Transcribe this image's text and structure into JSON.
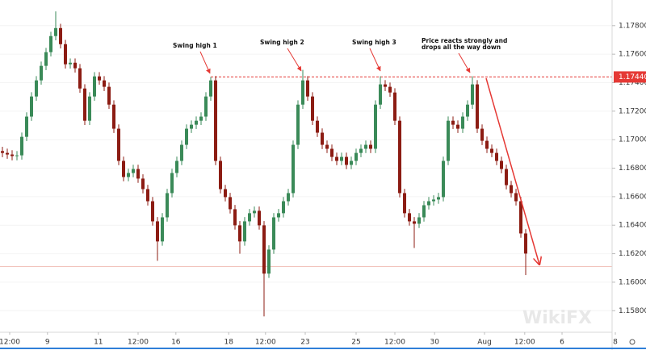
{
  "chart_data": {
    "type": "candlestick",
    "open": [
      1.1692,
      1.16907,
      1.16896,
      1.16885,
      1.1689,
      1.1702,
      1.17162,
      1.17303,
      1.17416,
      1.17518,
      1.17614,
      1.17727,
      1.17783,
      1.1767,
      1.17529,
      1.1754,
      1.17501,
      1.17359,
      1.17133,
      1.17303,
      1.17444,
      1.17416,
      1.17371,
      1.17246,
      1.17077,
      1.16851,
      1.16738,
      1.16766,
      1.16794,
      1.16727,
      1.16653,
      1.16568,
      1.16427,
      1.16286,
      1.16455,
      1.16625,
      1.16766,
      1.16851,
      1.16964,
      1.17077,
      1.17105,
      1.17133,
      1.17162,
      1.17303,
      1.17416,
      1.16851,
      1.16653,
      1.16597,
      1.16512,
      1.16399,
      1.16286,
      1.16427,
      1.16484,
      1.16501,
      1.16399,
      1.1606,
      1.16229,
      1.16455,
      1.16484,
      1.16568,
      1.16625,
      1.16964,
      1.17246,
      1.17416,
      1.17303,
      1.17133,
      1.17049,
      1.16964,
      1.16936,
      1.16879,
      1.16851,
      1.16879,
      1.16823,
      1.16851,
      1.16907,
      1.16936,
      1.16964,
      1.16936,
      1.17246,
      1.17388,
      1.17371,
      1.17331,
      1.17133,
      1.16625,
      1.16484,
      1.16427,
      1.1641,
      1.16455,
      1.1654,
      1.16568,
      1.1658,
      1.16597,
      1.16851,
      1.17133,
      1.17105,
      1.17077,
      1.17162,
      1.17246,
      1.17388,
      1.17077,
      1.16992,
      1.16936,
      1.16907,
      1.16851,
      1.16794,
      1.16681,
      1.16625,
      1.16568,
      1.16342
    ],
    "high": [
      1.1695,
      1.16937,
      1.16926,
      1.1692,
      1.1705,
      1.17192,
      1.17333,
      1.17446,
      1.17548,
      1.17644,
      1.17757,
      1.179,
      1.17813,
      1.177,
      1.1757,
      1.1757,
      1.17531,
      1.17389,
      1.17333,
      1.17474,
      1.17474,
      1.17446,
      1.17401,
      1.17276,
      1.17107,
      1.16881,
      1.16796,
      1.16824,
      1.16824,
      1.16757,
      1.16683,
      1.16598,
      1.16457,
      1.16485,
      1.16655,
      1.16796,
      1.16881,
      1.16994,
      1.17107,
      1.17135,
      1.17163,
      1.17192,
      1.17333,
      1.1744,
      1.17446,
      1.16881,
      1.16683,
      1.16627,
      1.16542,
      1.16429,
      1.16457,
      1.16514,
      1.16531,
      1.16531,
      1.16429,
      1.16259,
      1.16485,
      1.16514,
      1.16598,
      1.16655,
      1.16994,
      1.17276,
      1.1749,
      1.17446,
      1.17333,
      1.17163,
      1.17079,
      1.16994,
      1.16966,
      1.16909,
      1.16909,
      1.16909,
      1.16881,
      1.16937,
      1.16966,
      1.16994,
      1.16994,
      1.17276,
      1.17445,
      1.17418,
      1.17401,
      1.17361,
      1.17163,
      1.16655,
      1.16514,
      1.16457,
      1.16485,
      1.1657,
      1.16598,
      1.1661,
      1.16627,
      1.16881,
      1.17163,
      1.17163,
      1.17135,
      1.17192,
      1.17276,
      1.17445,
      1.17418,
      1.17107,
      1.17022,
      1.16966,
      1.16937,
      1.16881,
      1.16824,
      1.16711,
      1.16655,
      1.16598,
      1.16372
    ],
    "low": [
      1.16877,
      1.16866,
      1.16855,
      1.16855,
      1.1686,
      1.1699,
      1.17132,
      1.17273,
      1.17386,
      1.17488,
      1.17584,
      1.17697,
      1.1764,
      1.17499,
      1.17499,
      1.17471,
      1.17329,
      1.17103,
      1.17103,
      1.17273,
      1.17386,
      1.17341,
      1.17216,
      1.17047,
      1.16821,
      1.16708,
      1.16708,
      1.16736,
      1.16697,
      1.16623,
      1.16538,
      1.16397,
      1.1615,
      1.16256,
      1.16425,
      1.16595,
      1.16736,
      1.16821,
      1.16934,
      1.17047,
      1.17075,
      1.17103,
      1.17132,
      1.17273,
      1.16821,
      1.16623,
      1.16567,
      1.16482,
      1.16369,
      1.162,
      1.16256,
      1.16397,
      1.16454,
      1.16369,
      1.1576,
      1.1603,
      1.16199,
      1.16425,
      1.16454,
      1.16538,
      1.16595,
      1.16934,
      1.17216,
      1.17273,
      1.17103,
      1.17019,
      1.16934,
      1.16906,
      1.16849,
      1.16821,
      1.16821,
      1.16793,
      1.16793,
      1.16821,
      1.16877,
      1.16906,
      1.16906,
      1.16906,
      1.17216,
      1.17341,
      1.17301,
      1.17103,
      1.16595,
      1.16454,
      1.16397,
      1.1624,
      1.1638,
      1.16425,
      1.1651,
      1.16538,
      1.1655,
      1.16567,
      1.16821,
      1.17075,
      1.17047,
      1.17047,
      1.17132,
      1.17216,
      1.17047,
      1.16962,
      1.16906,
      1.16877,
      1.16821,
      1.16764,
      1.16651,
      1.16595,
      1.16538,
      1.16312,
      1.1605
    ],
    "close": [
      1.16907,
      1.16896,
      1.16885,
      1.1689,
      1.1702,
      1.17162,
      1.17303,
      1.17416,
      1.17518,
      1.17614,
      1.17727,
      1.17783,
      1.1767,
      1.17529,
      1.1754,
      1.17501,
      1.17359,
      1.17133,
      1.17303,
      1.17444,
      1.17416,
      1.17371,
      1.17246,
      1.17077,
      1.16851,
      1.16738,
      1.16766,
      1.16794,
      1.16727,
      1.16653,
      1.16568,
      1.16427,
      1.16286,
      1.16455,
      1.16625,
      1.16766,
      1.16851,
      1.16964,
      1.17077,
      1.17105,
      1.17133,
      1.17162,
      1.17303,
      1.17416,
      1.16851,
      1.16653,
      1.16597,
      1.16512,
      1.16399,
      1.16286,
      1.16427,
      1.16484,
      1.16501,
      1.16399,
      1.1606,
      1.16229,
      1.16455,
      1.16484,
      1.16568,
      1.16625,
      1.16964,
      1.17246,
      1.17416,
      1.17303,
      1.17133,
      1.17049,
      1.16964,
      1.16936,
      1.16879,
      1.16851,
      1.16879,
      1.16823,
      1.16851,
      1.16907,
      1.16936,
      1.16964,
      1.16936,
      1.17246,
      1.17388,
      1.17371,
      1.17331,
      1.17133,
      1.16625,
      1.16484,
      1.16427,
      1.1641,
      1.16455,
      1.1654,
      1.16568,
      1.1658,
      1.16597,
      1.16851,
      1.17133,
      1.17105,
      1.17077,
      1.17162,
      1.17246,
      1.17388,
      1.17077,
      1.16992,
      1.16936,
      1.16907,
      1.16851,
      1.16794,
      1.16681,
      1.16625,
      1.16568,
      1.16342,
      1.16201
    ],
    "up_color": "#3a8a58",
    "down_color": "#8c1c13",
    "xlim": [
      0,
      126.33
    ],
    "xticks": [
      {
        "value": 2,
        "label": "12:00"
      },
      {
        "value": 9.8,
        "label": "9"
      },
      {
        "value": 20.3,
        "label": "11"
      },
      {
        "value": 28.5,
        "label": "12:00"
      },
      {
        "value": 36.3,
        "label": "16"
      },
      {
        "value": 47.2,
        "label": "18"
      },
      {
        "value": 54.8,
        "label": "12:00"
      },
      {
        "value": 63,
        "label": "23"
      },
      {
        "value": 73.5,
        "label": "25"
      },
      {
        "value": 81.5,
        "label": "12:00"
      },
      {
        "value": 89.7,
        "label": "30"
      },
      {
        "value": 100,
        "label": "Aug"
      },
      {
        "value": 108.3,
        "label": "12:00"
      },
      {
        "value": 116,
        "label": "6"
      },
      {
        "value": 127,
        "label": "8"
      }
    ],
    "ylim": [
      1.1566,
      1.1798
    ],
    "yticks": [
      {
        "value": 1.178,
        "label": "1.17800"
      },
      {
        "value": 1.176,
        "label": "1.17600"
      },
      {
        "value": 1.174,
        "label": "1.17400"
      },
      {
        "value": 1.172,
        "label": "1.17200"
      },
      {
        "value": 1.17,
        "label": "1.17000"
      },
      {
        "value": 1.168,
        "label": "1.16800"
      },
      {
        "value": 1.166,
        "label": "1.16600"
      },
      {
        "value": 1.164,
        "label": "1.16400"
      },
      {
        "value": 1.162,
        "label": "1.16200"
      },
      {
        "value": 1.16,
        "label": "1.16000"
      },
      {
        "value": 1.158,
        "label": "1.15800"
      }
    ],
    "levels": [
      {
        "value": 1.1744,
        "label": "1.17440",
        "color": "#e53935"
      },
      {
        "value": 1.1611,
        "color": "#f2c4bd"
      }
    ],
    "annotations": [
      "Swing high 1",
      "Swing high 2",
      "Swing high 3",
      "Price reacts strongly and",
      "drops all the way down"
    ],
    "watermark": "WikiFX"
  }
}
